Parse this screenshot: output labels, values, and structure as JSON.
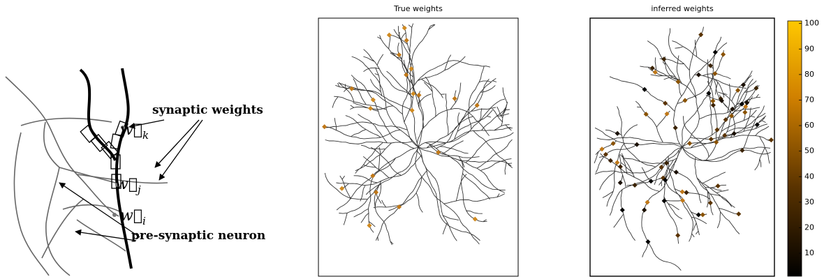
{
  "diagram": {
    "labels": {
      "synaptic": "synaptic weights",
      "presynaptic": "pre-synaptic neuron"
    },
    "weight_labels": [
      {
        "symbol": "w⃗",
        "sub": "k"
      },
      {
        "symbol": "w⃗",
        "sub": "j"
      },
      {
        "symbol": "w⃗",
        "sub": "i"
      }
    ]
  },
  "chart_data": {
    "type": "colorbar",
    "panels": [
      {
        "title": "True weights"
      },
      {
        "title": "inferred weights"
      }
    ],
    "clim": [
      1,
      101
    ],
    "ticks": [
      10,
      20,
      30,
      40,
      50,
      60,
      70,
      80,
      90,
      100
    ]
  }
}
